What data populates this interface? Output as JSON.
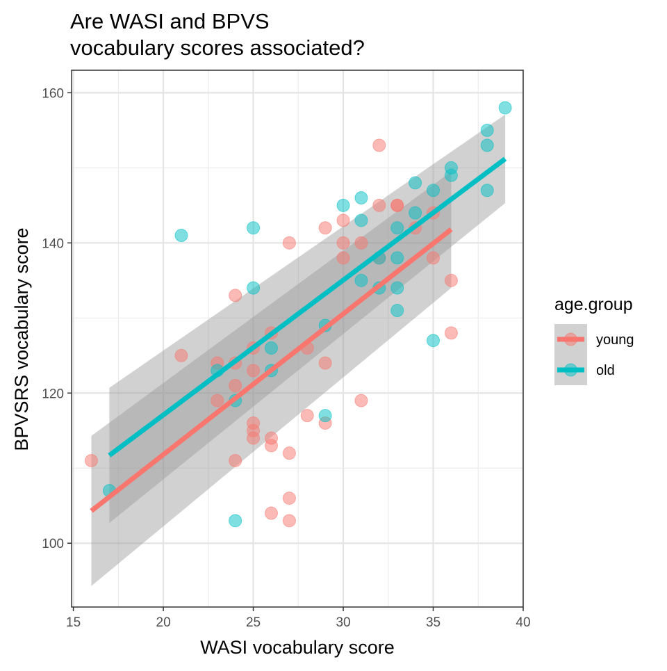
{
  "chart_data": {
    "type": "scatter",
    "title": "Are WASI and BPVS\nvocabulary scores associated?",
    "xlabel": "WASI vocabulary score",
    "ylabel": "BPVSRS vocabulary score",
    "xlim": [
      14.9,
      40.0
    ],
    "ylim": [
      91.5,
      163.0
    ],
    "x_ticks": [
      15,
      20,
      25,
      30,
      35,
      40
    ],
    "y_ticks": [
      100,
      120,
      140,
      160
    ],
    "grid": true,
    "legend": {
      "title": "age.group",
      "position": "right"
    },
    "series": [
      {
        "name": "young",
        "color": "#F8766D",
        "points": [
          [
            16,
            111
          ],
          [
            21,
            125
          ],
          [
            23,
            124
          ],
          [
            23,
            119
          ],
          [
            24,
            133
          ],
          [
            24,
            124
          ],
          [
            24,
            121
          ],
          [
            24,
            111
          ],
          [
            25,
            126
          ],
          [
            25,
            123
          ],
          [
            25,
            116
          ],
          [
            25,
            115
          ],
          [
            25,
            114
          ],
          [
            26,
            128
          ],
          [
            26,
            114
          ],
          [
            26,
            113
          ],
          [
            26,
            104
          ],
          [
            27,
            140
          ],
          [
            27,
            112
          ],
          [
            27,
            106
          ],
          [
            27,
            103
          ],
          [
            28,
            126
          ],
          [
            28,
            117
          ],
          [
            29,
            142
          ],
          [
            29,
            124
          ],
          [
            29,
            116
          ],
          [
            30,
            143
          ],
          [
            30,
            140
          ],
          [
            30,
            138
          ],
          [
            31,
            140
          ],
          [
            31,
            119
          ],
          [
            32,
            153
          ],
          [
            32,
            145
          ],
          [
            32,
            138
          ],
          [
            33,
            145
          ],
          [
            33,
            145
          ],
          [
            34,
            142
          ],
          [
            35,
            144
          ],
          [
            35,
            138
          ],
          [
            36,
            135
          ],
          [
            36,
            128
          ]
        ],
        "fit": {
          "x": [
            16,
            36
          ],
          "y": [
            104.3,
            141.8
          ],
          "ci_lower": [
            94.3,
            134.0
          ],
          "ci_upper": [
            114.3,
            149.5
          ]
        }
      },
      {
        "name": "old",
        "color": "#00BFC4",
        "points": [
          [
            17,
            107
          ],
          [
            21,
            141
          ],
          [
            23,
            123
          ],
          [
            24,
            119
          ],
          [
            24,
            103
          ],
          [
            25,
            142
          ],
          [
            25,
            134
          ],
          [
            26,
            126
          ],
          [
            26,
            123
          ],
          [
            29,
            129
          ],
          [
            29,
            117
          ],
          [
            30,
            145
          ],
          [
            31,
            146
          ],
          [
            31,
            143
          ],
          [
            31,
            135
          ],
          [
            32,
            138
          ],
          [
            32,
            134
          ],
          [
            33,
            142
          ],
          [
            33,
            138
          ],
          [
            33,
            134
          ],
          [
            33,
            131
          ],
          [
            34,
            148
          ],
          [
            34,
            144
          ],
          [
            35,
            147
          ],
          [
            35,
            127
          ],
          [
            36,
            150
          ],
          [
            36,
            149
          ],
          [
            38,
            155
          ],
          [
            38,
            153
          ],
          [
            38,
            147
          ],
          [
            39,
            158
          ]
        ],
        "fit": {
          "x": [
            17,
            39
          ],
          "y": [
            111.7,
            151.2
          ],
          "ci_lower": [
            102.7,
            145.3
          ],
          "ci_upper": [
            120.7,
            157.1
          ]
        }
      }
    ]
  }
}
